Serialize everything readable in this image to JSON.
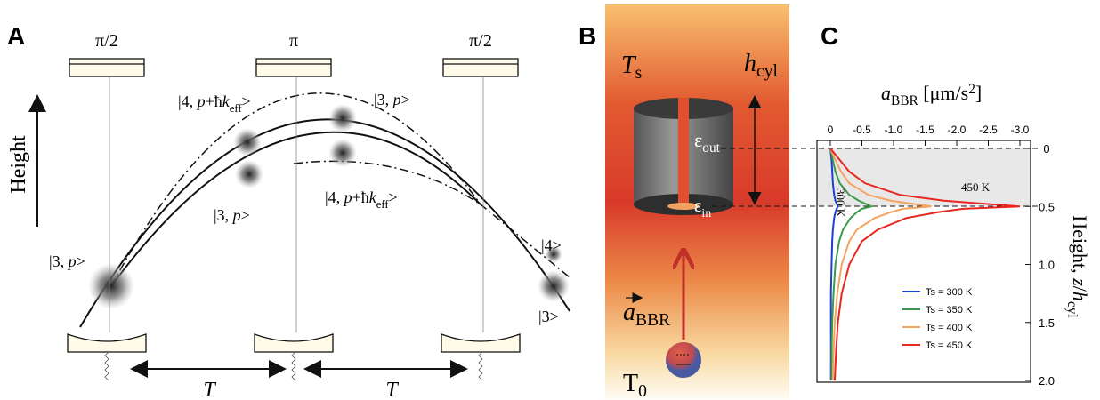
{
  "panel_a": {
    "label": "A",
    "pulses": [
      "π/2",
      "π",
      "π/2"
    ],
    "axis_label": "Height",
    "states": [
      [
        "|4, ",
        "p",
        "+ħ",
        "k",
        "eff",
        ">"
      ],
      [
        "|3, ",
        "p",
        ">"
      ],
      [
        "|3, ",
        "p",
        ">"
      ],
      [
        "|4, ",
        "p",
        "+ħ",
        "k",
        "eff",
        ">"
      ],
      [
        "|3, ",
        "p",
        ">"
      ],
      [
        "|4>"
      ],
      [
        "|3>"
      ]
    ],
    "time_labels": [
      "T",
      "T"
    ]
  },
  "panel_b": {
    "label": "B",
    "source_temp": [
      "T",
      "s"
    ],
    "height": [
      "h",
      "cyl"
    ],
    "emissivity_out": [
      "ε",
      "out"
    ],
    "emissivity_in": [
      "ε",
      "in"
    ],
    "acceleration": [
      "a",
      "BBR"
    ],
    "ambient_temp": [
      "T",
      "0"
    ]
  },
  "chart_data": {
    "type": "line",
    "label": "C",
    "ylabel": [
      "a",
      "BBR",
      " [μm/s",
      "2",
      "]"
    ],
    "xlabel": [
      "Height, ",
      "z",
      "/",
      "h",
      "cyl"
    ],
    "x": [
      0,
      0.1,
      0.2,
      0.3,
      0.4,
      0.45,
      0.5,
      0.52,
      0.55,
      0.6,
      0.7,
      0.8,
      1.0,
      1.25,
      1.5,
      1.75,
      2.0
    ],
    "xlim": [
      0,
      2
    ],
    "xticks": [
      0,
      0.5,
      {
        "value": 1,
        "label": "1.0"
      },
      1.5,
      {
        "value": 2,
        "label": "2.0"
      }
    ],
    "ylim": [
      0,
      -3
    ],
    "yticks": [
      0,
      -0.5,
      {
        "value": -1,
        "label": "-1.0"
      },
      -1.5,
      {
        "value": -2,
        "label": "-2.0"
      },
      -2.5,
      {
        "value": -3,
        "label": "-3.0"
      }
    ],
    "series": [
      {
        "name": "Ts = 300 K",
        "color": "#1f3fd0",
        "values": [
          0,
          -0.02,
          -0.03,
          -0.04,
          -0.06,
          -0.08,
          -0.12,
          -0.1,
          -0.08,
          -0.06,
          -0.04,
          -0.03,
          -0.02,
          -0.01,
          -0.01,
          -0.01,
          -0.01
        ]
      },
      {
        "name": "Ts = 350 K",
        "color": "#3a9a4a",
        "values": [
          0,
          -0.04,
          -0.08,
          -0.15,
          -0.3,
          -0.45,
          -0.65,
          -0.5,
          -0.42,
          -0.32,
          -0.2,
          -0.14,
          -0.08,
          -0.05,
          -0.03,
          -0.02,
          -0.02
        ]
      },
      {
        "name": "Ts = 400 K",
        "color": "#f4a460",
        "values": [
          0,
          -0.08,
          -0.17,
          -0.3,
          -0.6,
          -0.95,
          -1.6,
          -1.15,
          -0.95,
          -0.7,
          -0.42,
          -0.3,
          -0.18,
          -0.11,
          -0.07,
          -0.05,
          -0.04
        ]
      },
      {
        "name": "Ts = 450 K",
        "color": "#e8261f",
        "values": [
          0,
          -0.15,
          -0.3,
          -0.55,
          -1.1,
          -1.8,
          -3.0,
          -2.1,
          -1.7,
          -1.2,
          -0.75,
          -0.5,
          -0.3,
          -0.18,
          -0.12,
          -0.09,
          -0.07
        ]
      }
    ],
    "annotations": [
      "450 K",
      "300 K"
    ],
    "legend_position": "lower right"
  }
}
